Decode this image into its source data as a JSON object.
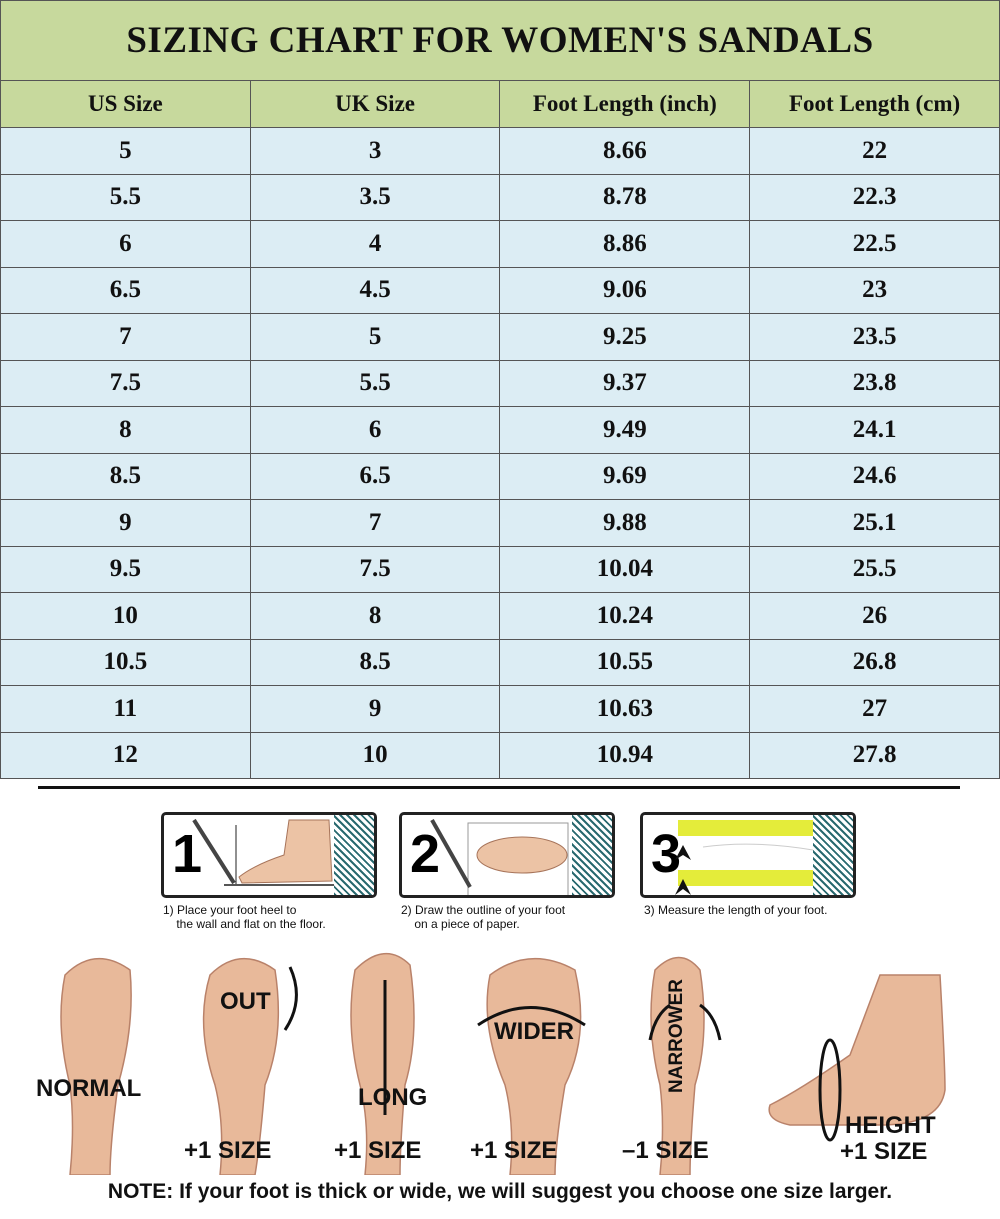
{
  "title": "SIZING CHART FOR WOMEN'S SANDALS",
  "headers": [
    "US Size",
    "UK Size",
    "Foot Length (inch)",
    "Foot Length (cm)"
  ],
  "rows": [
    [
      "5",
      "3",
      "8.66",
      "22"
    ],
    [
      "5.5",
      "3.5",
      "8.78",
      "22.3"
    ],
    [
      "6",
      "4",
      "8.86",
      "22.5"
    ],
    [
      "6.5",
      "4.5",
      "9.06",
      "23"
    ],
    [
      "7",
      "5",
      "9.25",
      "23.5"
    ],
    [
      "7.5",
      "5.5",
      "9.37",
      "23.8"
    ],
    [
      "8",
      "6",
      "9.49",
      "24.1"
    ],
    [
      "8.5",
      "6.5",
      "9.69",
      "24.6"
    ],
    [
      "9",
      "7",
      "9.88",
      "25.1"
    ],
    [
      "9.5",
      "7.5",
      "10.04",
      "25.5"
    ],
    [
      "10",
      "8",
      "10.24",
      "26"
    ],
    [
      "10.5",
      "8.5",
      "10.55",
      "26.8"
    ],
    [
      "11",
      "9",
      "10.63",
      "27"
    ],
    [
      "12",
      "10",
      "10.94",
      "27.8"
    ]
  ],
  "steps": [
    {
      "num": "1",
      "caption": "1) Place your foot heel to\n    the wall and flat on the floor."
    },
    {
      "num": "2",
      "caption": "2) Draw the outline of your foot\n    on a piece of paper."
    },
    {
      "num": "3",
      "caption": "3) Measure the length of your foot."
    }
  ],
  "foot_types": [
    {
      "label": "NORMAL",
      "size": ""
    },
    {
      "label": "OUT",
      "size": "+1 SIZE"
    },
    {
      "label": "LONG",
      "size": "+1 SIZE"
    },
    {
      "label": "WIDER",
      "size": "+1 SIZE"
    },
    {
      "label": "NARROWER",
      "size": "–1 SIZE"
    },
    {
      "label": "HEIGHT",
      "size": "+1 SIZE"
    }
  ],
  "note": "NOTE: If your foot is thick or wide, we will suggest you choose one size larger.",
  "colors": {
    "header_bg": "#c7d99d",
    "row_bg": "#dcedf4",
    "skin": "#e8b99a"
  }
}
